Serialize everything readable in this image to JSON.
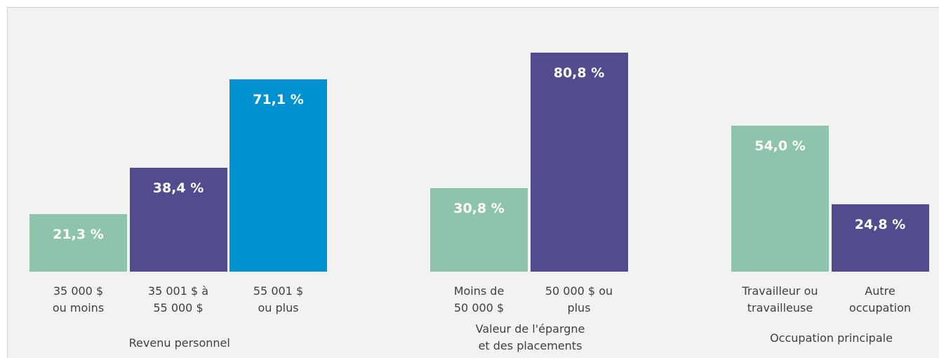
{
  "chart_data": {
    "type": "bar",
    "groups": [
      {
        "name": "Revenu personnel",
        "categories": [
          "35 000 $\nou moins",
          "35 001 $ à\n55 000 $",
          "55 001 $\nou plus"
        ],
        "values": [
          21.3,
          38.4,
          71.1
        ],
        "value_labels": [
          "21,3 %",
          "38,4 %",
          "71,1 %"
        ],
        "colors": [
          "#8fc4ac",
          "#524c8f",
          "#0092d0"
        ]
      },
      {
        "name": "Valeur de l'épargne\net des placements",
        "categories": [
          "Moins de\n50 000 $",
          "50 000 $ ou\nplus"
        ],
        "values": [
          30.8,
          80.8
        ],
        "value_labels": [
          "30,8 %",
          "80,8 %"
        ],
        "colors": [
          "#8fc4ac",
          "#524c8f"
        ]
      },
      {
        "name": "Occupation principale",
        "categories": [
          "Travailleur ou\ntravailleuse",
          "Autre\noccupation"
        ],
        "values": [
          54.0,
          24.8
        ],
        "value_labels": [
          "54,0 %",
          "24,8 %"
        ],
        "colors": [
          "#8fc4ac",
          "#524c8f"
        ]
      }
    ]
  }
}
